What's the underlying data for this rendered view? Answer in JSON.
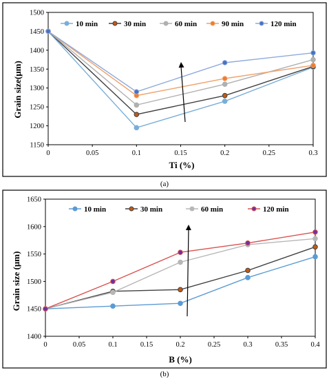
{
  "chart_data": [
    {
      "type": "line",
      "caption": "(a)",
      "xlabel": "Ti (%)",
      "ylabel": "Grain size(μm)",
      "x": [
        0,
        0.1,
        0.2,
        0.3
      ],
      "xlim": [
        0,
        0.3
      ],
      "ylim": [
        1150,
        1500
      ],
      "xticks": [
        "0",
        "0.05",
        "0.1",
        "0.15",
        "0.2",
        "0.25",
        "0.3"
      ],
      "yticks": [
        "1150",
        "1200",
        "1250",
        "1300",
        "1350",
        "1400",
        "1450",
        "1500"
      ],
      "grid": false,
      "legend_position": "top",
      "annotation": "upward arrow",
      "series": [
        {
          "name": "10 min",
          "values": [
            1450,
            1195,
            1265,
            1355
          ],
          "color": "#7aaed8",
          "marker_fill": "#7aaed8"
        },
        {
          "name": "30 min",
          "values": [
            1450,
            1230,
            1280,
            1357
          ],
          "color": "#404040",
          "marker_fill": "#c55a11"
        },
        {
          "name": "60 min",
          "values": [
            1450,
            1255,
            1310,
            1375
          ],
          "color": "#b0b0b0",
          "marker_fill": "#b0b0b0"
        },
        {
          "name": "90 min",
          "values": [
            1450,
            1280,
            1325,
            1360
          ],
          "color": "#f0a06a",
          "marker_fill": "#ed7d31"
        },
        {
          "name": "120 min",
          "values": [
            1450,
            1290,
            1367,
            1393
          ],
          "color": "#8eaadb",
          "marker_fill": "#4472c4"
        }
      ]
    },
    {
      "type": "line",
      "caption": "(b)",
      "xlabel": "B (%)",
      "ylabel": "Grain size (μm)",
      "x": [
        0,
        0.1,
        0.2,
        0.3,
        0.4
      ],
      "xlim": [
        0,
        0.4
      ],
      "ylim": [
        1400,
        1650
      ],
      "xticks": [
        "0",
        "0.05",
        "0.1",
        "0.15",
        "0.2",
        "0.25",
        "0.3",
        "0.35",
        "0.4"
      ],
      "yticks": [
        "1400",
        "1450",
        "1500",
        "1550",
        "1600",
        "1650"
      ],
      "grid": false,
      "legend_position": "top",
      "annotation": "upward arrow",
      "series": [
        {
          "name": "10 min",
          "values": [
            1450,
            1455,
            1460,
            1507,
            1545
          ],
          "color": "#5b9bd5",
          "marker_fill": "#5b9bd5"
        },
        {
          "name": "30 min",
          "values": [
            1450,
            1482,
            1485,
            1520,
            1563
          ],
          "color": "#404040",
          "marker_fill": "#c55a11"
        },
        {
          "name": "60 min",
          "values": [
            1450,
            1480,
            1535,
            1567,
            1578
          ],
          "color": "#b7b7b7",
          "marker_fill": "#b7b7b7"
        },
        {
          "name": "120 min",
          "values": [
            1450,
            1500,
            1553,
            1570,
            1590
          ],
          "color": "#d9534f",
          "marker_fill": "#7030a0"
        }
      ]
    }
  ]
}
